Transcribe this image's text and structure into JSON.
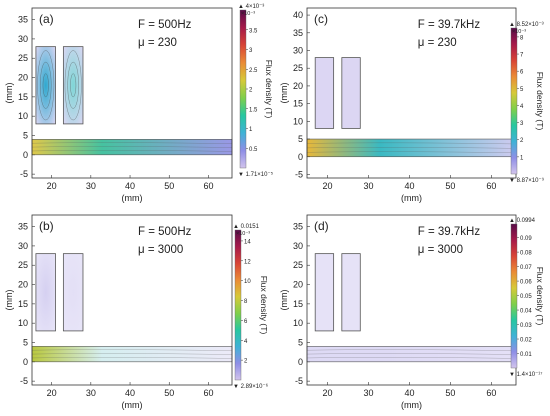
{
  "chart_data": [
    {
      "type": "heatmap",
      "panel_label": "(a)",
      "annotation_freq": "F = 500Hz",
      "annotation_mu": "μ = 230",
      "xlabel": "(mm)",
      "ylabel": "(mm)",
      "xlim": [
        15,
        66
      ],
      "ylim": [
        -6,
        38
      ],
      "xticks": [
        20,
        30,
        40,
        50,
        60
      ],
      "yticks": [
        -5,
        0,
        5,
        10,
        15,
        20,
        25,
        30,
        35
      ],
      "plate": {
        "y_bottom": 0,
        "y_top": 4
      },
      "coils": [
        {
          "x": [
            16,
            21
          ],
          "y": [
            8,
            28
          ]
        },
        {
          "x": [
            23,
            28
          ],
          "y": [
            8,
            28
          ]
        }
      ],
      "colorbar": {
        "label": "Flux density (T)",
        "max_label": "▲ 4×10⁻³",
        "exponent": "×10⁻³",
        "min_label": "▼ 1.71×10⁻⁵",
        "ticks": [
          "0.5",
          "1",
          "1.5",
          "2",
          "2.5",
          "3",
          "3.5"
        ],
        "tick_values": [
          0.5,
          1,
          1.5,
          2,
          2.5,
          3,
          3.5
        ],
        "range": [
          0,
          4
        ],
        "colors": [
          "#d2c4ec",
          "#8e8ee6",
          "#3fb2d6",
          "#27c7a0",
          "#7fcf4a",
          "#d7c938",
          "#ea8b36",
          "#d84436",
          "#a61a4a",
          "#580c48"
        ]
      },
      "field_colors": {
        "plate_hot": "#e0c94a",
        "plate_mid": "#46c2a0",
        "plate_cold": "#9a98e6",
        "coil_hot": "#2fa9cf",
        "coil_mid": "#7fd6d6",
        "coil_cold": "#dcd6f3"
      }
    },
    {
      "type": "heatmap",
      "panel_label": "(c)",
      "annotation_freq": "F = 39.7kHz",
      "annotation_mu": "μ = 230",
      "xlabel": "(mm)",
      "ylabel": "(mm)",
      "xlim": [
        15,
        66
      ],
      "ylim": [
        -6,
        42
      ],
      "xticks": [
        20,
        30,
        40,
        50,
        60
      ],
      "yticks": [
        -5,
        0,
        5,
        10,
        15,
        20,
        25,
        30,
        35,
        40
      ],
      "plate": {
        "y_bottom": 0,
        "y_top": 5
      },
      "coils": [
        {
          "x": [
            17,
            21.5
          ],
          "y": [
            8,
            28
          ]
        },
        {
          "x": [
            23.5,
            28
          ],
          "y": [
            8,
            28
          ]
        }
      ],
      "colorbar": {
        "label": "Flux density (T)",
        "max_label": "▲ 8.52×10⁻³",
        "exponent": "×10⁻³",
        "min_label": "▼ 8.87×10⁻⁹",
        "ticks": [
          "1",
          "2",
          "3",
          "4",
          "5",
          "6",
          "7",
          "8"
        ],
        "tick_values": [
          1,
          2,
          3,
          4,
          5,
          6,
          7,
          8
        ],
        "range": [
          0,
          8.52
        ],
        "colors": [
          "#d2c4ec",
          "#8e8ee6",
          "#3fb2d6",
          "#27c7a0",
          "#7fcf4a",
          "#d7c938",
          "#ea8b36",
          "#d84436",
          "#a61a4a",
          "#580c48"
        ]
      },
      "field_colors": {
        "plate_hot": "#e8b83a",
        "plate_mid": "#3ab9c2",
        "plate_cold": "#d0cbf0",
        "coil_hot": "#dcd6f3",
        "coil_mid": "#dcd6f3",
        "coil_cold": "#dcd6f3"
      }
    },
    {
      "type": "heatmap",
      "panel_label": "(b)",
      "annotation_freq": "F = 500Hz",
      "annotation_mu": "μ = 3000",
      "xlabel": "(mm)",
      "ylabel": "(mm)",
      "xlim": [
        15,
        66
      ],
      "ylim": [
        -6,
        38
      ],
      "xticks": [
        20,
        30,
        40,
        50,
        60
      ],
      "yticks": [
        -5,
        0,
        5,
        10,
        15,
        20,
        25,
        30,
        35
      ],
      "plate": {
        "y_bottom": 0,
        "y_top": 4
      },
      "coils": [
        {
          "x": [
            16,
            21
          ],
          "y": [
            8,
            28
          ]
        },
        {
          "x": [
            23,
            28
          ],
          "y": [
            8,
            28
          ]
        }
      ],
      "colorbar": {
        "label": "Flux density (T)",
        "max_label": "▲ 0.0151",
        "exponent": "×10⁻³",
        "min_label": "▼ 2.89×10⁻⁶",
        "ticks": [
          "2",
          "4",
          "6",
          "8",
          "10",
          "12",
          "14"
        ],
        "tick_values": [
          2,
          4,
          6,
          8,
          10,
          12,
          14
        ],
        "range": [
          0,
          15.1
        ],
        "colors": [
          "#d2c4ec",
          "#8e8ee6",
          "#3fb2d6",
          "#27c7a0",
          "#7fcf4a",
          "#d7c938",
          "#ea8b36",
          "#d84436",
          "#a61a4a",
          "#580c48"
        ]
      },
      "field_colors": {
        "plate_hot": "#b9c83e",
        "plate_mid": "#d6eef0",
        "plate_cold": "#eceaf8",
        "coil_hot": "#d5d0f1",
        "coil_mid": "#e3dff6",
        "coil_cold": "#e8e5f8"
      }
    },
    {
      "type": "heatmap",
      "panel_label": "(d)",
      "annotation_freq": "F = 39.7kHz",
      "annotation_mu": "μ = 3000",
      "xlabel": "(mm)",
      "ylabel": "(mm)",
      "xlim": [
        15,
        66
      ],
      "ylim": [
        -6,
        38
      ],
      "xticks": [
        20,
        30,
        40,
        50,
        60
      ],
      "yticks": [
        -5,
        0,
        5,
        10,
        15,
        20,
        25,
        30,
        35
      ],
      "plate": {
        "y_bottom": 0,
        "y_top": 4
      },
      "coils": [
        {
          "x": [
            17,
            21.5
          ],
          "y": [
            8,
            28
          ]
        },
        {
          "x": [
            23.5,
            28
          ],
          "y": [
            8,
            28
          ]
        }
      ],
      "colorbar": {
        "label": "Flux density (T)",
        "max_label": "▲ 0.0994",
        "exponent": "",
        "min_label": "▼ 1.4×10⁻¹⁷",
        "ticks": [
          "0.01",
          "0.02",
          "0.03",
          "0.04",
          "0.05",
          "0.06",
          "0.07",
          "0.08",
          "0.09"
        ],
        "tick_values": [
          0.01,
          0.02,
          0.03,
          0.04,
          0.05,
          0.06,
          0.07,
          0.08,
          0.09
        ],
        "range": [
          0,
          0.0994
        ],
        "colors": [
          "#d2c4ec",
          "#8e8ee6",
          "#3fb2d6",
          "#27c7a0",
          "#7fcf4a",
          "#d7c938",
          "#ea8b36",
          "#d84436",
          "#a61a4a",
          "#580c48"
        ]
      },
      "field_colors": {
        "plate_hot": "#dedaf5",
        "plate_mid": "#dedaf5",
        "plate_cold": "#e4e0f7",
        "coil_hot": "#e6e2f7",
        "coil_mid": "#e6e2f7",
        "coil_cold": "#e6e2f7"
      }
    }
  ]
}
